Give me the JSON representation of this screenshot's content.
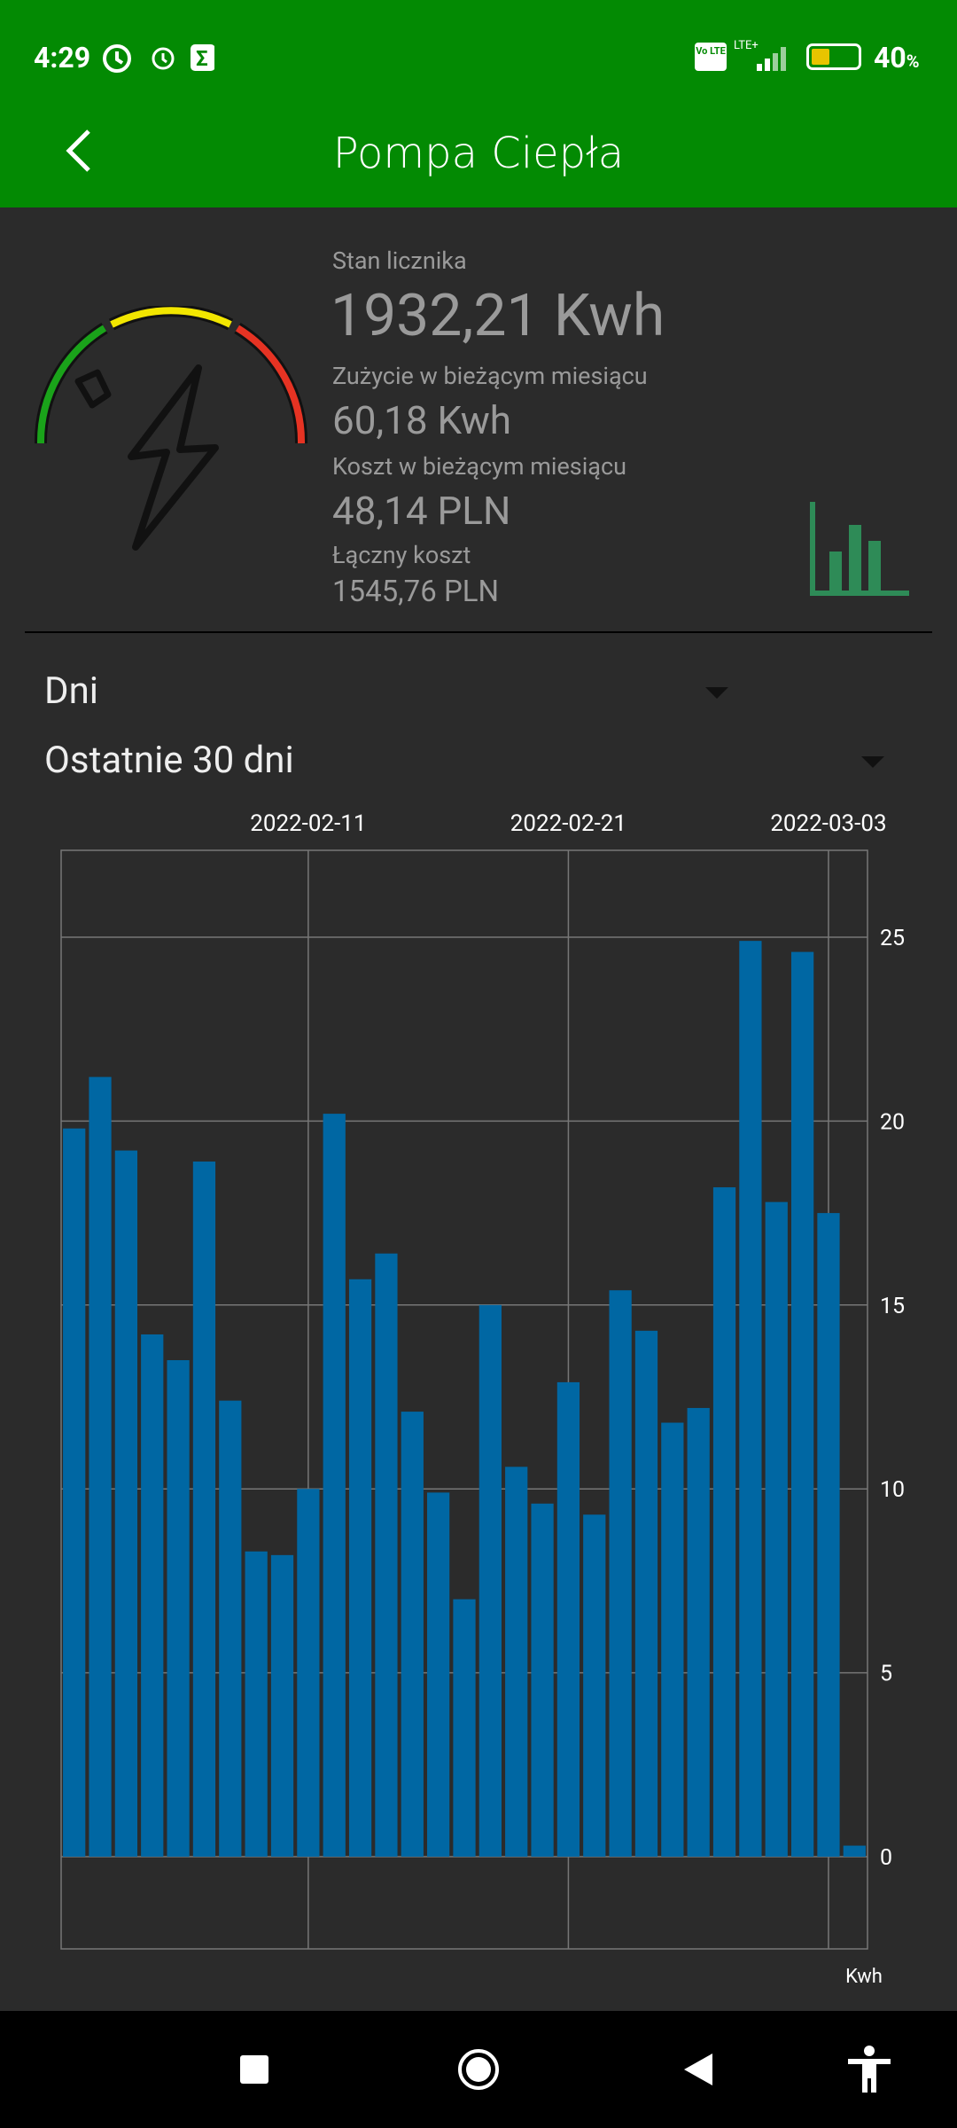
{
  "status_bar": {
    "time": "4:29",
    "battery": "40",
    "battery_unit": "%",
    "network": "LTE+",
    "volte": "Vo LTE",
    "battery_level": 0.4
  },
  "header": {
    "title": "Pompa Ciepła",
    "back_icon": "arrow-left-icon"
  },
  "summary": {
    "meter_label": "Stan licznika",
    "meter_value": "1932,21 Kwh",
    "month_usage_label": "Zużycie w bieżącym miesiącu",
    "month_usage_value": "60,18 Kwh",
    "month_cost_label": "Koszt w bieżącym miesiącu",
    "month_cost_value": "48,14 PLN",
    "total_cost_label": "Łączny koszt",
    "total_cost_value": "1545,76 PLN"
  },
  "filters": {
    "period": "Dni",
    "range": "Ostatnie 30 dni"
  },
  "colors": {
    "brand": "#038a03",
    "bar": "#0067a3",
    "stats_icon": "#2e8b57"
  },
  "chart_data": {
    "type": "bar",
    "categories": [
      "2022-02-02",
      "2022-02-03",
      "2022-02-04",
      "2022-02-05",
      "2022-02-06",
      "2022-02-07",
      "2022-02-08",
      "2022-02-09",
      "2022-02-10",
      "2022-02-11",
      "2022-02-12",
      "2022-02-13",
      "2022-02-14",
      "2022-02-15",
      "2022-02-16",
      "2022-02-17",
      "2022-02-18",
      "2022-02-19",
      "2022-02-20",
      "2022-02-21",
      "2022-02-22",
      "2022-02-23",
      "2022-02-24",
      "2022-02-25",
      "2022-02-26",
      "2022-02-27",
      "2022-02-28",
      "2022-03-01",
      "2022-03-02",
      "2022-03-03",
      "2022-03-04"
    ],
    "values": [
      19.8,
      21.2,
      19.2,
      14.2,
      13.5,
      18.9,
      12.4,
      8.3,
      8.2,
      10.0,
      20.2,
      15.7,
      16.4,
      12.1,
      9.9,
      7.0,
      15.0,
      10.6,
      9.6,
      12.9,
      9.3,
      15.4,
      14.3,
      11.8,
      12.2,
      18.2,
      24.9,
      17.8,
      24.6,
      17.5,
      0.3
    ],
    "x_tick_labels": [
      "2022-02-11",
      "2022-02-21",
      "2022-03-03"
    ],
    "y_ticks": [
      0,
      5,
      10,
      15,
      20,
      25
    ],
    "ylim": [
      -2.5,
      27.4
    ],
    "ylabel": "Kwh",
    "y_axis_position": "right",
    "grid": true
  }
}
